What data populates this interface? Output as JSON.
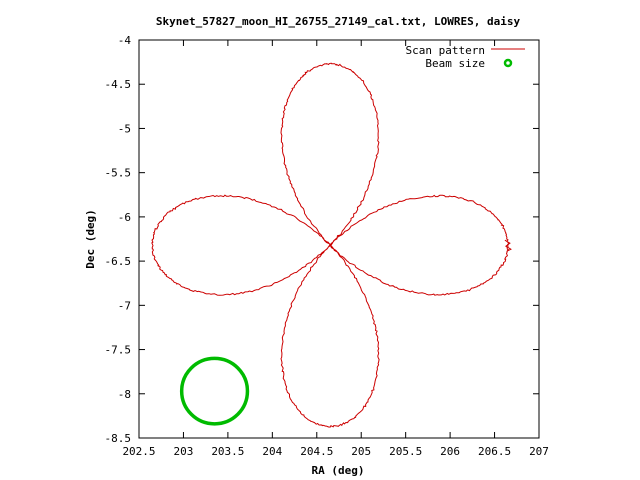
{
  "chart_data": {
    "type": "line",
    "title": "Skynet_57827_moon_HI_26755_27149_cal.txt, LOWRES, daisy",
    "xlabel": "RA (deg)",
    "ylabel": "Dec (deg)",
    "xlim": [
      202.5,
      207
    ],
    "ylim": [
      -8.5,
      -4
    ],
    "x_ticks": [
      202.5,
      203,
      203.5,
      204,
      204.5,
      205,
      205.5,
      206,
      206.5,
      207
    ],
    "x_tick_labels": [
      "202.5",
      "203",
      "203.5",
      "204",
      "204.5",
      "205",
      "205.5",
      "206",
      "206.5",
      "207"
    ],
    "y_ticks": [
      -4,
      -4.5,
      -5,
      -5.5,
      -6,
      -6.5,
      -7,
      -7.5,
      -8,
      -8.5
    ],
    "y_tick_labels": [
      "-4",
      "-4.5",
      "-5",
      "-5.5",
      "-6",
      "-6.5",
      "-7",
      "-7.5",
      "-8",
      "-8.5"
    ],
    "grid": false,
    "legend_position": "top-right",
    "series": [
      {
        "name": "Scan pattern",
        "color": "#cc0000",
        "style": "line",
        "pattern": "daisy",
        "center": [
          204.65,
          -6.32
        ],
        "petal_reach_ra": 2.0,
        "petal_reach_dec": 2.05,
        "petals": 4,
        "start_point": [
          206.65,
          -6.32
        ]
      },
      {
        "name": "Beam size",
        "color": "#00bb00",
        "style": "circle",
        "center": [
          203.35,
          -7.97
        ],
        "radius_ra": 0.37,
        "radius_dec": 0.37
      }
    ]
  }
}
